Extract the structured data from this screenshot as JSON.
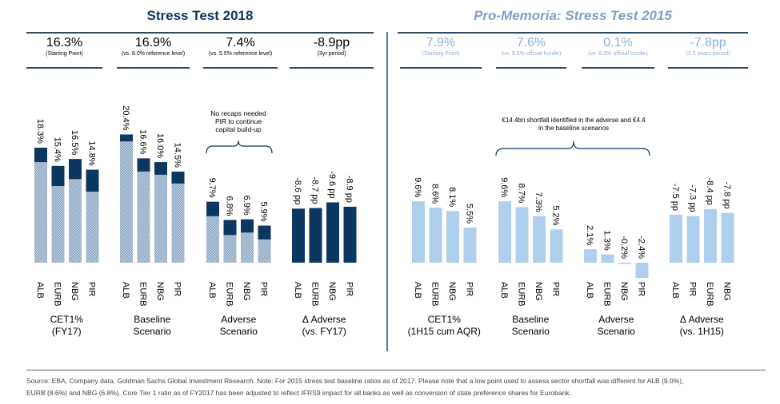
{
  "left": {
    "title": "Stress Test 2018",
    "metrics": [
      {
        "value": "16.3%",
        "sub": "(Starting Point)"
      },
      {
        "value": "16.9%",
        "sub": "(vs. 8.0% reference level)"
      },
      {
        "value": "7.4%",
        "sub": "(vs. 5.5% reference level)"
      },
      {
        "value": "-8.9pp",
        "sub": "(3yr period)"
      }
    ],
    "annotation": [
      "No recaps needed",
      "PIR to continue",
      "capital build-up"
    ]
  },
  "right": {
    "title": "Pro-Memoria: Stress Test 2015",
    "metrics": [
      {
        "value": "7.9%",
        "sub": "(Starting Point)"
      },
      {
        "value": "7.6%",
        "sub": "(vs. 9.5% official hurdle)"
      },
      {
        "value": "0.1%",
        "sub": "(vs. 8.0% official hurdle)"
      },
      {
        "value": "-7.8pp",
        "sub": "(2.5 years period)"
      }
    ],
    "annotation": [
      "€14.4bn shortfall identified in the adverse and  €4.4",
      "in the baseline scenarios"
    ]
  },
  "colors": {
    "dark_navy": "#0c3760",
    "hatched": "#8aa6c4",
    "light_blue": "#aed0ee",
    "title_light": "#7f9fc6"
  },
  "chart_data": [
    {
      "type": "bar",
      "group": "CET1%\n(FY17)",
      "label_lines": [
        "CET1%",
        "(FY17)"
      ],
      "categories": [
        "ALB",
        "EURB",
        "NBG",
        "PIR"
      ],
      "values": [
        18.3,
        15.4,
        16.5,
        14.8
      ],
      "hatched_values": [
        16.0,
        12.2,
        13.3,
        11.3
      ],
      "data_labels": [
        "18.3%",
        "15.4%",
        "16.5%",
        "14.8%"
      ],
      "style": "stacked-hatched"
    },
    {
      "type": "bar",
      "label_lines": [
        "Baseline",
        "Scenario"
      ],
      "categories": [
        "ALB",
        "EURB",
        "NBG",
        "PIR"
      ],
      "values": [
        20.4,
        16.6,
        16.0,
        14.5
      ],
      "hatched_values": [
        19.3,
        14.5,
        14.0,
        12.6
      ],
      "data_labels": [
        "20.4%",
        "16.6%",
        "16.0%",
        "14.5%"
      ],
      "style": "stacked-hatched"
    },
    {
      "type": "bar",
      "label_lines": [
        "Adverse",
        "Scenario"
      ],
      "categories": [
        "ALB",
        "EURB",
        "NBG",
        "PIR"
      ],
      "values": [
        9.7,
        6.8,
        6.9,
        5.9
      ],
      "hatched_values": [
        7.4,
        4.4,
        4.8,
        3.7
      ],
      "data_labels": [
        "9.7%",
        "6.8%",
        "6.9%",
        "5.9%"
      ],
      "style": "stacked-hatched"
    },
    {
      "type": "bar",
      "label_lines": [
        "Δ Adverse",
        "(vs. FY17)"
      ],
      "categories": [
        "ALB",
        "EURB",
        "NBG",
        "PIR"
      ],
      "values": [
        -8.6,
        -8.7,
        -9.6,
        -8.9
      ],
      "data_labels": [
        "-8.6 pp",
        "-8.7 pp",
        "-9.6 pp",
        "-8.9 pp"
      ],
      "style": "dark",
      "plot_abs": true
    },
    {
      "type": "bar",
      "label_lines": [
        "CET1%",
        "(1H15 cum AQR)"
      ],
      "categories": [
        "ALB",
        "EURB",
        "NBG",
        "PIR"
      ],
      "values": [
        9.6,
        8.6,
        8.1,
        5.5
      ],
      "data_labels": [
        "9.6%",
        "8.6%",
        "8.1%",
        "5.5%"
      ],
      "style": "light"
    },
    {
      "type": "bar",
      "label_lines": [
        "Baseline",
        "Scenario"
      ],
      "categories": [
        "ALB",
        "EURB",
        "NBG",
        "PIR"
      ],
      "values": [
        9.6,
        8.7,
        7.3,
        5.2
      ],
      "data_labels": [
        "9.6%",
        "8.7%",
        "7.3%",
        "5.2%"
      ],
      "style": "light"
    },
    {
      "type": "bar",
      "label_lines": [
        "Adverse",
        "Scenario"
      ],
      "categories": [
        "ALB",
        "EURB",
        "NBG",
        "PIR"
      ],
      "values": [
        2.1,
        1.3,
        -0.2,
        -2.4
      ],
      "data_labels": [
        "2.1%",
        "1.3%",
        "-0.2%",
        "-2.4%"
      ],
      "style": "light"
    },
    {
      "type": "bar",
      "label_lines": [
        "Δ Adverse",
        "(vs. 1H15)"
      ],
      "categories": [
        "ALB",
        "PIR",
        "EURB",
        "NBG"
      ],
      "values": [
        -7.5,
        -7.3,
        -8.4,
        -7.8
      ],
      "data_labels": [
        "-7.5 pp",
        "-7.3 pp",
        "-8.4 pp",
        "-7.8 pp"
      ],
      "style": "light",
      "plot_abs": true
    }
  ],
  "footer": {
    "line1": "Source: EBA, Company data, Goldman Sachs Global Investment Research. Note: For 2015 stress test baseline ratios as of 2017. Please note that a low point used to assess sector shortfall was different for ALB (9.0%),",
    "line2": "EURB (8.6%) and NBG (6.8%). Core Tier 1 ratio as of FY2017 has been adjusted to reflect IFRS9 impact for all banks as well as conversion of state preference shares for Eurobank."
  }
}
